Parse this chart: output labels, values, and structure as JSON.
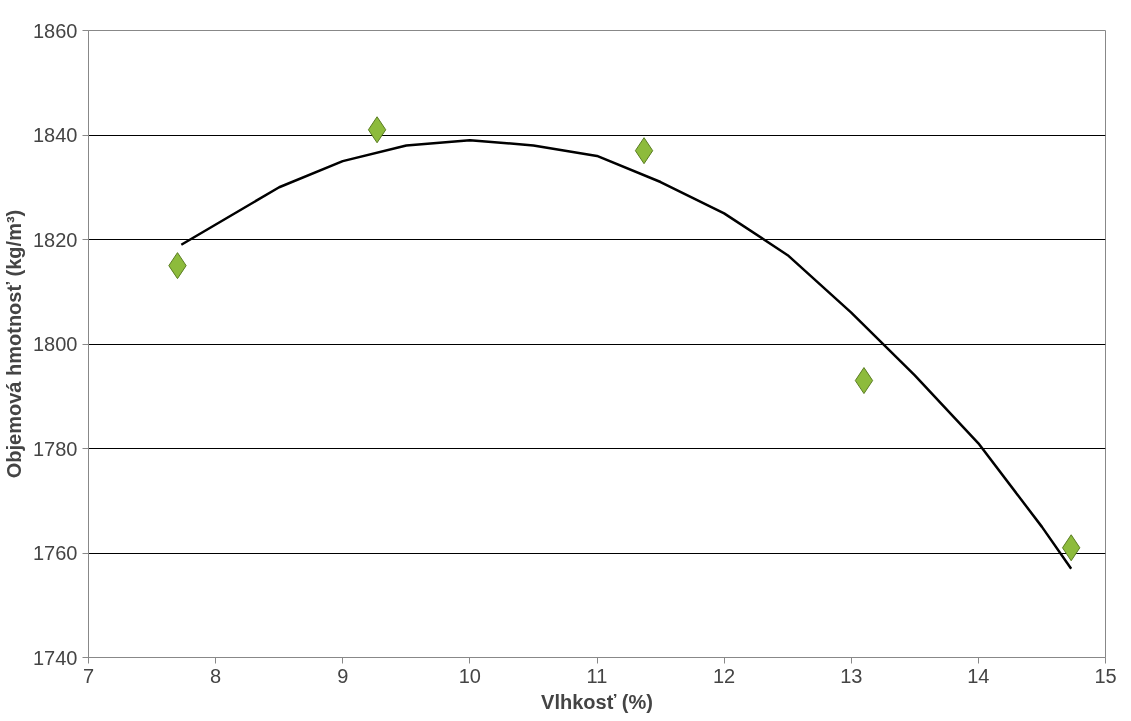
{
  "chart_data": {
    "type": "scatter",
    "xlabel": "Vlhkosť (%)",
    "ylabel": "Objemová hmotnosť (kg/m³)",
    "xlim": [
      7,
      15
    ],
    "xticks": [
      7,
      8,
      9,
      10,
      11,
      12,
      13,
      14,
      15
    ],
    "ylim": [
      1740,
      1860
    ],
    "yticks": [
      1740,
      1760,
      1780,
      1800,
      1820,
      1840,
      1860
    ],
    "grid": "y",
    "marker": "diamond",
    "series": [
      {
        "color": "#8dbb3c",
        "x": [
          7.7,
          9.27,
          11.37,
          13.1,
          14.73
        ],
        "values": [
          1815,
          1841,
          1837,
          1793,
          1761
        ]
      },
      {
        "type": "line",
        "color": "#000000",
        "line_style": "solid",
        "marker": "none",
        "x": [
          7.73,
          8.5,
          9,
          9.5,
          10,
          10.5,
          11,
          11.5,
          12,
          12.5,
          13,
          13.5,
          14,
          14.5,
          14.73
        ],
        "values": [
          1819,
          1830,
          1835,
          1838,
          1839,
          1838,
          1836,
          1831,
          1825,
          1817,
          1806,
          1794,
          1781,
          1765,
          1757
        ]
      }
    ]
  }
}
